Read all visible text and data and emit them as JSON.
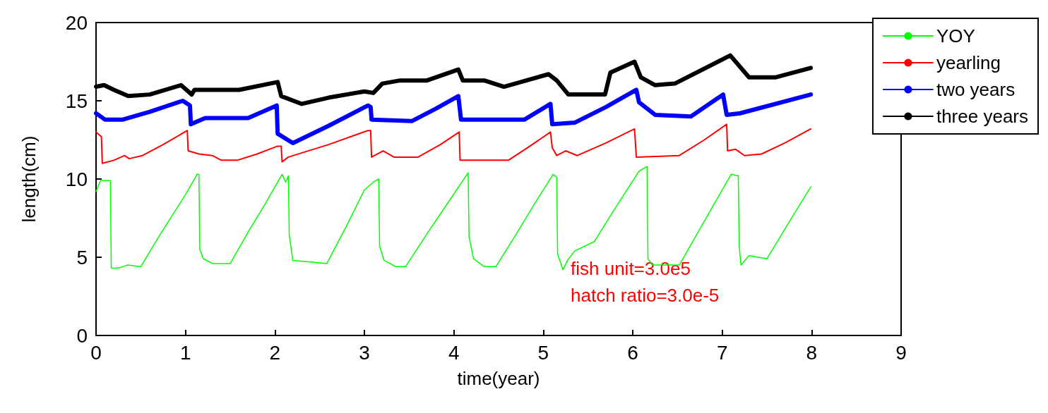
{
  "chart_data": {
    "type": "line",
    "xlabel": "time(year)",
    "ylabel": "length(cm)",
    "xlim": [
      0,
      9
    ],
    "xticks": [
      0,
      1,
      2,
      3,
      4,
      5,
      6,
      7,
      8,
      9
    ],
    "ylim": [
      0,
      20
    ],
    "yticks": [
      0,
      5,
      10,
      15,
      20
    ],
    "grid": false,
    "legend": "top right",
    "marker": "none",
    "line_style": "solid",
    "annotations": [
      "fish unit=3.0e5",
      "hatch ratio=3.0e-5"
    ],
    "series": [
      {
        "name": "YOY",
        "color": "#00ff00",
        "x": [
          0,
          0.05,
          0.16,
          0.17,
          0.25,
          0.35,
          0.5,
          0.7,
          0.9,
          1.0,
          1.13,
          1.15,
          1.16,
          1.2,
          1.3,
          1.5,
          1.7,
          1.9,
          2.08,
          2.12,
          2.15,
          2.16,
          2.2,
          2.4,
          2.58,
          2.8,
          3.0,
          3.1,
          3.16,
          3.17,
          3.22,
          3.35,
          3.46,
          3.7,
          3.9,
          4.16,
          4.17,
          4.22,
          4.34,
          4.47,
          4.7,
          4.9,
          5.11,
          5.15,
          5.16,
          5.22,
          5.27,
          5.35,
          5.57,
          5.8,
          6.07,
          6.16,
          6.17,
          6.22,
          6.52,
          6.7,
          6.9,
          7.1,
          7.18,
          7.19,
          7.21,
          7.3,
          7.5,
          7.7,
          7.99
        ],
        "values": [
          9.2,
          9.9,
          9.9,
          4.3,
          4.3,
          4.5,
          4.4,
          6.3,
          8.1,
          9.0,
          10.3,
          10.3,
          5.5,
          4.9,
          4.6,
          4.6,
          6.6,
          8.5,
          10.3,
          9.8,
          10.2,
          6.4,
          4.8,
          4.7,
          4.6,
          7.0,
          9.3,
          9.8,
          10.0,
          5.7,
          4.8,
          4.4,
          4.4,
          6.5,
          8.2,
          10.4,
          6.3,
          4.9,
          4.4,
          4.4,
          6.5,
          8.4,
          10.3,
          10.1,
          5.2,
          4.2,
          4.8,
          5.4,
          6.0,
          8.1,
          10.5,
          10.8,
          4.9,
          4.5,
          4.5,
          6.3,
          8.3,
          10.3,
          10.2,
          5.7,
          4.5,
          5.1,
          4.9,
          6.8,
          9.5
        ]
      },
      {
        "name": "yearling",
        "color": "#ff0000",
        "x": [
          0,
          0.06,
          0.07,
          0.2,
          0.32,
          0.37,
          0.52,
          0.75,
          1.02,
          1.03,
          1.15,
          1.3,
          1.4,
          1.58,
          1.8,
          2.03,
          2.07,
          2.08,
          2.15,
          2.6,
          3.04,
          3.07,
          3.08,
          3.21,
          3.33,
          3.6,
          3.85,
          4.06,
          4.07,
          4.61,
          4.85,
          5.08,
          5.1,
          5.15,
          5.25,
          5.38,
          5.7,
          6.02,
          6.04,
          6.52,
          6.8,
          7.05,
          7.06,
          7.15,
          7.25,
          7.44,
          7.7,
          7.99
        ],
        "values": [
          13.0,
          12.7,
          11.0,
          11.2,
          11.5,
          11.3,
          11.5,
          12.2,
          13.1,
          11.8,
          11.6,
          11.5,
          11.2,
          11.2,
          11.6,
          12.1,
          12.1,
          11.1,
          11.4,
          12.2,
          13.1,
          13.1,
          11.4,
          11.8,
          11.4,
          11.4,
          12.2,
          13.0,
          11.2,
          11.2,
          12.1,
          13.0,
          12.0,
          11.5,
          11.8,
          11.5,
          12.3,
          13.2,
          11.4,
          11.5,
          12.5,
          13.5,
          11.8,
          11.9,
          11.5,
          11.6,
          12.3,
          13.2
        ]
      },
      {
        "name": "two years",
        "color": "#0000ff",
        "x": [
          0,
          0.1,
          0.3,
          0.6,
          0.97,
          1.05,
          1.06,
          1.22,
          1.7,
          2.02,
          2.03,
          2.2,
          2.6,
          3.04,
          3.07,
          3.08,
          3.53,
          3.8,
          4.05,
          4.08,
          4.79,
          5.08,
          5.1,
          5.35,
          5.7,
          6.04,
          6.07,
          6.25,
          6.65,
          7.01,
          7.05,
          7.2,
          7.99
        ],
        "values": [
          14.2,
          13.8,
          13.8,
          14.3,
          15.0,
          14.7,
          13.5,
          13.9,
          13.9,
          14.7,
          12.9,
          12.3,
          13.4,
          14.7,
          14.6,
          13.8,
          13.7,
          14.5,
          15.3,
          13.8,
          13.8,
          14.8,
          13.5,
          13.6,
          14.6,
          15.7,
          14.9,
          14.1,
          14.0,
          15.4,
          14.1,
          14.2,
          15.4
        ]
      },
      {
        "name": "three years",
        "color": "#000000",
        "x": [
          0,
          0.09,
          0.2,
          0.36,
          0.6,
          0.95,
          1.07,
          1.1,
          1.6,
          2.03,
          2.07,
          2.3,
          2.6,
          3.0,
          3.1,
          3.2,
          3.4,
          3.7,
          4.05,
          4.1,
          4.34,
          4.56,
          5.06,
          5.15,
          5.28,
          5.69,
          5.75,
          6.02,
          6.09,
          6.25,
          6.47,
          7.09,
          7.3,
          7.6,
          7.99
        ],
        "values": [
          15.9,
          16.0,
          15.7,
          15.3,
          15.4,
          16.0,
          15.4,
          15.7,
          15.7,
          16.2,
          15.3,
          14.8,
          15.2,
          15.6,
          15.5,
          16.1,
          16.3,
          16.3,
          17.0,
          16.3,
          16.3,
          15.9,
          16.7,
          16.3,
          15.4,
          15.4,
          16.8,
          17.5,
          16.5,
          16.0,
          16.1,
          17.9,
          16.5,
          16.5,
          17.1
        ]
      }
    ]
  }
}
